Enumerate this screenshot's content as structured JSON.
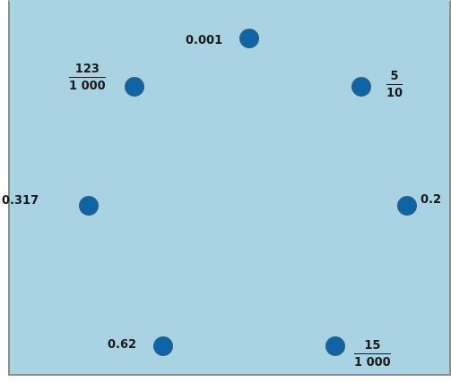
{
  "board": {
    "background": "#a9d2e3",
    "dot_color": "#0d65a6"
  },
  "points": [
    {
      "id": "top",
      "label": "0.001"
    },
    {
      "id": "upper-left",
      "numerator": "123",
      "denominator": "1 000"
    },
    {
      "id": "upper-right",
      "numerator": "5",
      "denominator": "10"
    },
    {
      "id": "middle-left",
      "label": "0.317"
    },
    {
      "id": "middle-right",
      "label": "0.2"
    },
    {
      "id": "lower-left",
      "label": "0.62"
    },
    {
      "id": "lower-right",
      "numerator": "15",
      "denominator": "1 000"
    }
  ]
}
